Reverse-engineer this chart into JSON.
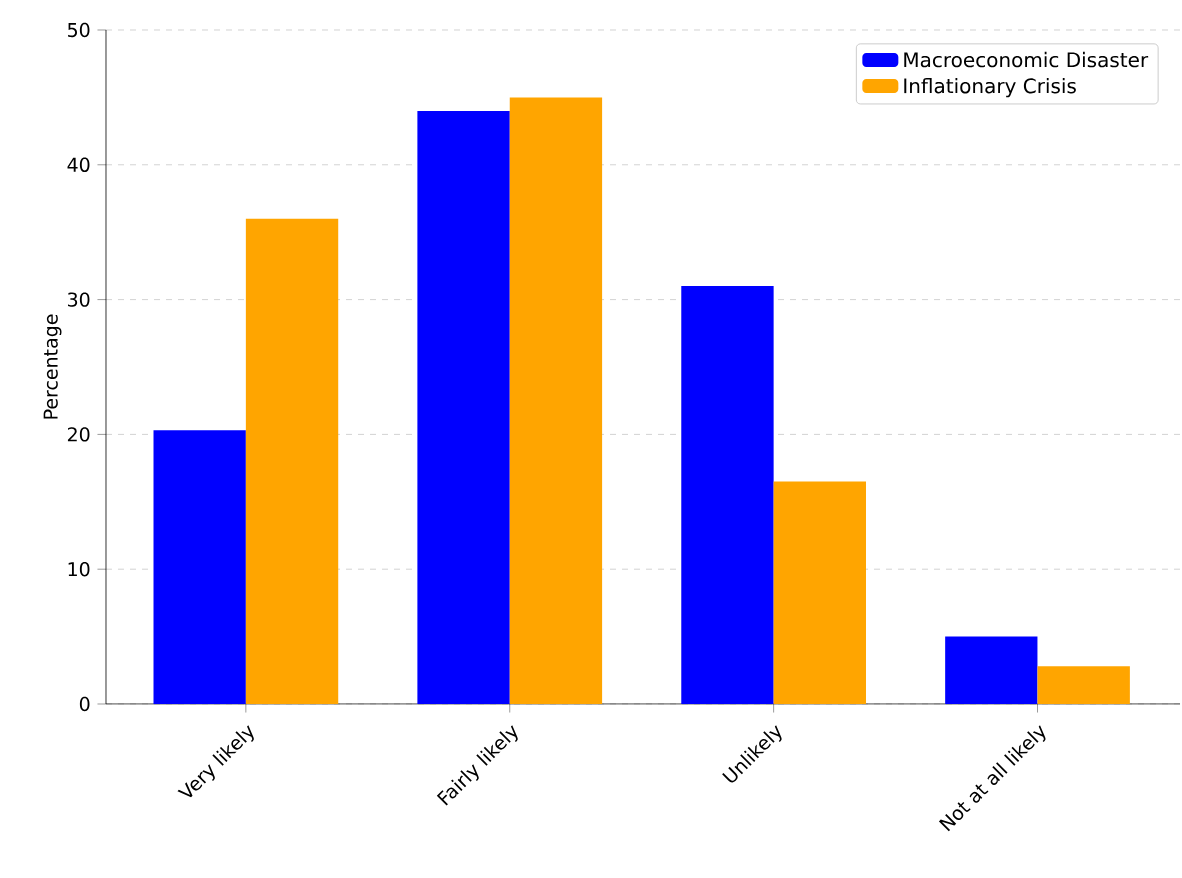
{
  "chart_data": {
    "type": "bar",
    "ylabel": "Percentage",
    "categories": [
      "Very likely",
      "Fairly likely",
      "Unlikely",
      "Not at all likely"
    ],
    "series": [
      {
        "name": "Macroeconomic Disaster",
        "color": "#0000ff",
        "values": [
          20.3,
          44,
          31,
          5
        ]
      },
      {
        "name": "Inflationary Crisis",
        "color": "#ffa500",
        "values": [
          36,
          45,
          16.5,
          2.8
        ]
      }
    ],
    "ylim": [
      0,
      50
    ],
    "yticks": [
      0,
      10,
      20,
      30,
      40,
      50
    ],
    "grid": "y",
    "legend": "top right"
  }
}
